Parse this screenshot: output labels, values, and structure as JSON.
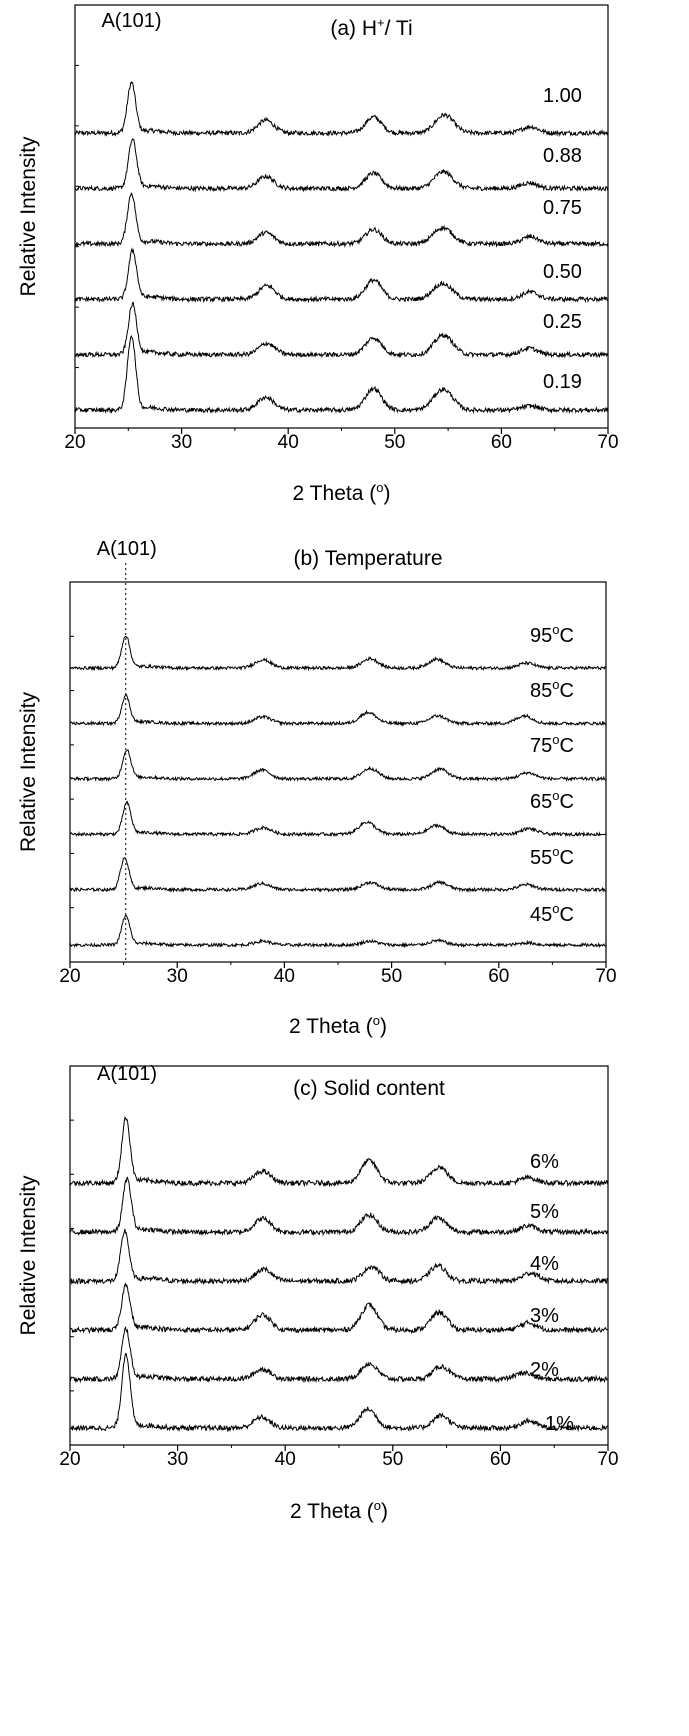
{
  "chart_data": [
    {
      "type": "line",
      "title": "(a) H⁺/ Ti",
      "peak_label": "A(101)",
      "xlabel": "2 Theta (°)",
      "ylabel": "Relative Intensity",
      "xlim": [
        20,
        70
      ],
      "xticks": [
        "20",
        "30",
        "40",
        "50",
        "60",
        "70"
      ],
      "y_tick_labels": false,
      "grid": false,
      "peak_line": null,
      "series": [
        {
          "name": "1.00",
          "peaks": [
            [
              25.3,
              0.62
            ],
            [
              37.9,
              0.16
            ],
            [
              48.0,
              0.2
            ],
            [
              54.3,
              0.14
            ],
            [
              55.1,
              0.12
            ],
            [
              62.7,
              0.08
            ]
          ]
        },
        {
          "name": "0.88",
          "peaks": [
            [
              25.4,
              0.6
            ],
            [
              37.9,
              0.15
            ],
            [
              48.0,
              0.19
            ],
            [
              54.2,
              0.13
            ],
            [
              55.0,
              0.11
            ],
            [
              62.6,
              0.07
            ]
          ]
        },
        {
          "name": "0.75",
          "peaks": [
            [
              25.3,
              0.62
            ],
            [
              37.9,
              0.14
            ],
            [
              48.0,
              0.18
            ],
            [
              54.1,
              0.13
            ],
            [
              55.0,
              0.11
            ],
            [
              62.7,
              0.09
            ]
          ]
        },
        {
          "name": "0.50",
          "peaks": [
            [
              25.4,
              0.6
            ],
            [
              38.0,
              0.17
            ],
            [
              48.0,
              0.24
            ],
            [
              54.1,
              0.13
            ],
            [
              55.0,
              0.1
            ],
            [
              62.7,
              0.09
            ]
          ]
        },
        {
          "name": "0.25",
          "peaks": [
            [
              25.4,
              0.62
            ],
            [
              38.0,
              0.14
            ],
            [
              48.0,
              0.21
            ],
            [
              54.2,
              0.15
            ],
            [
              55.0,
              0.13
            ],
            [
              62.6,
              0.08
            ]
          ]
        },
        {
          "name": "0.19",
          "peaks": [
            [
              25.3,
              0.92
            ],
            [
              37.9,
              0.16
            ],
            [
              48.0,
              0.27
            ],
            [
              54.1,
              0.16
            ],
            [
              55.0,
              0.15
            ],
            [
              62.7,
              0.05
            ]
          ]
        }
      ]
    },
    {
      "type": "line",
      "title": "(b) Temperature",
      "peak_label": "A(101)",
      "xlabel": "2 Theta (°)",
      "ylabel": "Relative Intensity",
      "xlim": [
        20,
        70
      ],
      "xticks": [
        "20",
        "30",
        "40",
        "50",
        "60",
        "70"
      ],
      "y_tick_labels": false,
      "grid": false,
      "peak_line": 25.2,
      "series": [
        {
          "name": "95°C",
          "peaks": [
            [
              25.2,
              0.58
            ],
            [
              38.0,
              0.15
            ],
            [
              48.0,
              0.17
            ],
            [
              54.2,
              0.16
            ],
            [
              62.6,
              0.09
            ]
          ]
        },
        {
          "name": "85°C",
          "peaks": [
            [
              25.2,
              0.5
            ],
            [
              38.0,
              0.12
            ],
            [
              47.8,
              0.2
            ],
            [
              54.3,
              0.14
            ],
            [
              62.4,
              0.14
            ]
          ]
        },
        {
          "name": "75°C",
          "peaks": [
            [
              25.3,
              0.52
            ],
            [
              37.9,
              0.16
            ],
            [
              48.0,
              0.19
            ],
            [
              54.5,
              0.18
            ],
            [
              62.7,
              0.11
            ]
          ]
        },
        {
          "name": "65°C",
          "peaks": [
            [
              25.3,
              0.56
            ],
            [
              38.0,
              0.12
            ],
            [
              47.7,
              0.22
            ],
            [
              54.2,
              0.16
            ],
            [
              62.8,
              0.1
            ]
          ]
        },
        {
          "name": "55°C",
          "peaks": [
            [
              25.1,
              0.58
            ],
            [
              37.9,
              0.11
            ],
            [
              48.0,
              0.13
            ],
            [
              54.5,
              0.13
            ],
            [
              62.6,
              0.09
            ]
          ]
        },
        {
          "name": "45°C",
          "peaks": [
            [
              25.2,
              0.52
            ],
            [
              38.0,
              0.07
            ],
            [
              48.0,
              0.07
            ],
            [
              54.3,
              0.08
            ],
            [
              62.6,
              0.04
            ]
          ]
        }
      ]
    },
    {
      "type": "line",
      "title": "(c) Solid content",
      "peak_label": "A(101)",
      "xlabel": "2 Theta (°)",
      "ylabel": "Relative Intensity",
      "xlim": [
        20,
        70
      ],
      "xticks": [
        "20",
        "30",
        "40",
        "50",
        "60",
        "70"
      ],
      "y_tick_labels": false,
      "grid": false,
      "peak_line": null,
      "series": [
        {
          "name": "6%",
          "peaks": [
            [
              25.2,
              0.72
            ],
            [
              37.9,
              0.13
            ],
            [
              47.8,
              0.25
            ],
            [
              54.3,
              0.18
            ],
            [
              62.6,
              0.06
            ]
          ]
        },
        {
          "name": "5%",
          "peaks": [
            [
              25.3,
              0.58
            ],
            [
              37.9,
              0.15
            ],
            [
              47.8,
              0.19
            ],
            [
              54.2,
              0.16
            ],
            [
              62.6,
              0.07
            ]
          ]
        },
        {
          "name": "4%",
          "peaks": [
            [
              25.1,
              0.55
            ],
            [
              38.0,
              0.13
            ],
            [
              48.0,
              0.16
            ],
            [
              54.2,
              0.17
            ],
            [
              62.8,
              0.09
            ]
          ]
        },
        {
          "name": "3%",
          "peaks": [
            [
              25.2,
              0.5
            ],
            [
              37.9,
              0.17
            ],
            [
              47.8,
              0.28
            ],
            [
              54.3,
              0.2
            ],
            [
              62.6,
              0.08
            ]
          ]
        },
        {
          "name": "2%",
          "peaks": [
            [
              25.2,
              0.55
            ],
            [
              37.9,
              0.11
            ],
            [
              47.8,
              0.17
            ],
            [
              54.5,
              0.14
            ],
            [
              62.2,
              0.07
            ]
          ]
        },
        {
          "name": "1%",
          "peaks": [
            [
              25.2,
              0.82
            ],
            [
              37.8,
              0.12
            ],
            [
              47.7,
              0.21
            ],
            [
              54.5,
              0.14
            ],
            [
              62.6,
              0.08
            ]
          ]
        }
      ]
    }
  ]
}
